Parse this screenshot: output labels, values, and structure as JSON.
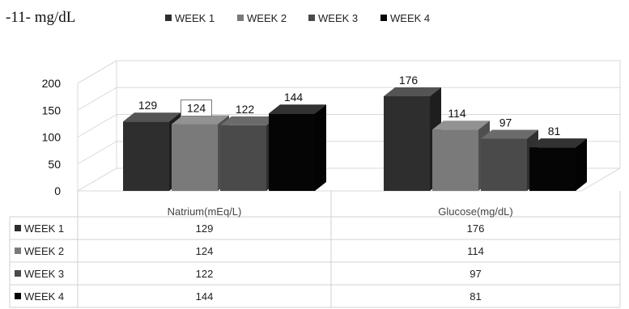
{
  "document_text": {
    "line1": "-11- mg/dL"
  },
  "chart_data": {
    "type": "bar",
    "title": "",
    "xlabel": "",
    "ylabel": "",
    "categories": [
      "Natrium(mEq/L)",
      "Glucose(mg/dL)"
    ],
    "series": [
      {
        "name": "WEEK 1",
        "values": [
          129,
          176
        ],
        "color": "#2e2e2e"
      },
      {
        "name": "WEEK 2",
        "values": [
          124,
          114
        ],
        "color": "#7a7a7a"
      },
      {
        "name": "WEEK 3",
        "values": [
          122,
          97
        ],
        "color": "#4a4a4a"
      },
      {
        "name": "WEEK 4",
        "values": [
          144,
          81
        ],
        "color": "#050505"
      }
    ],
    "ylim": [
      0,
      200
    ],
    "yticks": [
      0,
      50,
      100,
      150,
      200
    ],
    "grid": true,
    "legend_position": "top",
    "style": "3d-clustered-column-with-data-table"
  }
}
